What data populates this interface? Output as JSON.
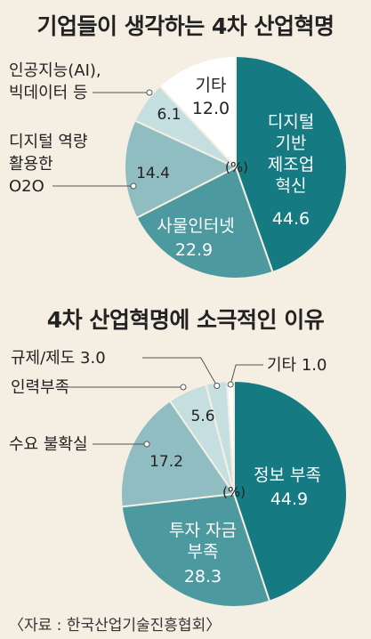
{
  "colors": {
    "dark": "#167a82",
    "mid": "#4c99a0",
    "light": "#8fbdc1",
    "pale": "#c5dfe0",
    "white": "#ffffff",
    "stroke": "#f4efe2"
  },
  "chart_data": [
    {
      "type": "pie",
      "title": "기업들이 생각하는 4차 산업혁명",
      "unit": "(%)",
      "slices": [
        {
          "label": [
            "디지털",
            "기반",
            "제조업",
            "혁신"
          ],
          "value": 44.6,
          "color": "dark"
        },
        {
          "label": [
            "사물인터넷"
          ],
          "value": 22.9,
          "color": "mid"
        },
        {
          "label": [
            "디지털 역량",
            "활용한",
            "O2O"
          ],
          "value": 14.4,
          "color": "light"
        },
        {
          "label": [
            "인공지능(AI),",
            "빅데이터 등"
          ],
          "value": 6.1,
          "color": "pale"
        },
        {
          "label": [
            "기타"
          ],
          "value": 12.0,
          "color": "white"
        }
      ]
    },
    {
      "type": "pie",
      "title": "4차 산업혁명에 소극적인 이유",
      "unit": "(%)",
      "slices": [
        {
          "label": [
            "정보 부족"
          ],
          "value": 44.9,
          "color": "dark"
        },
        {
          "label": [
            "투자 자금",
            "부족"
          ],
          "value": 28.3,
          "color": "mid"
        },
        {
          "label": [
            "수요 불확실"
          ],
          "value": 17.2,
          "color": "light"
        },
        {
          "label": [
            "인력부족"
          ],
          "value": 5.6,
          "color": "pale"
        },
        {
          "label": [
            "규제/제도"
          ],
          "value": 3.0,
          "color": "pale"
        },
        {
          "label": [
            "기타"
          ],
          "value": 1.0,
          "color": "white"
        }
      ]
    }
  ],
  "source": "〈자료 : 한국산업기술진흥협회〉"
}
